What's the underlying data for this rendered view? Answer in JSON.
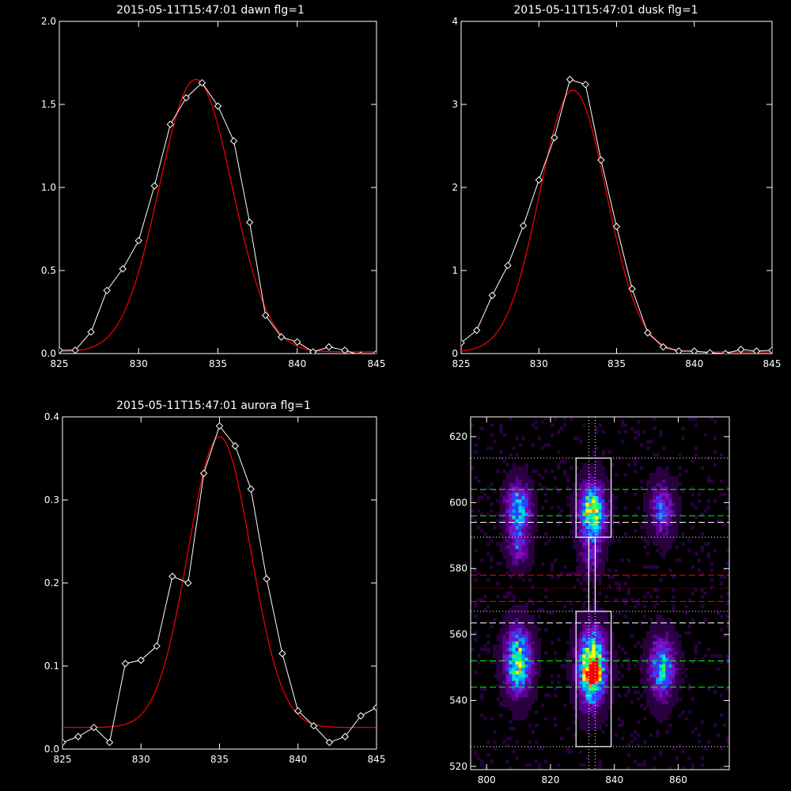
{
  "chart_data": [
    {
      "type": "line",
      "title": "2015-05-11T15:47:01 dawn flg=1",
      "xlim": [
        825,
        845
      ],
      "ylim": [
        0,
        2.0
      ],
      "x_ticks": [
        "825",
        "830",
        "835",
        "840",
        "845"
      ],
      "y_ticks": [
        "0.0",
        "0.5",
        "1.0",
        "1.5",
        "2.0"
      ],
      "series": [
        {
          "role": "observed",
          "color": "#ffffff",
          "marker": "diamond",
          "points": [
            [
              825,
              0.02
            ],
            [
              826,
              0.02
            ],
            [
              827,
              0.13
            ],
            [
              828,
              0.38
            ],
            [
              829,
              0.51
            ],
            [
              830,
              0.68
            ],
            [
              831,
              1.01
            ],
            [
              832,
              1.38
            ],
            [
              833,
              1.54
            ],
            [
              834,
              1.63
            ],
            [
              835,
              1.49
            ],
            [
              836,
              1.28
            ],
            [
              837,
              0.79
            ],
            [
              838,
              0.23
            ],
            [
              839,
              0.1
            ],
            [
              840,
              0.07
            ],
            [
              841,
              0.01
            ],
            [
              842,
              0.04
            ],
            [
              843,
              0.02
            ],
            [
              844,
              -0.01
            ],
            [
              845,
              0.0
            ]
          ]
        },
        {
          "role": "fit",
          "color": "#ff0000",
          "gauss": {
            "amp": 1.64,
            "center": 833.6,
            "sigma": 2.3,
            "offset": 0.01
          }
        }
      ]
    },
    {
      "type": "line",
      "title": "2015-05-11T15:47:01 dusk flg=1",
      "xlim": [
        825,
        845
      ],
      "ylim": [
        0,
        4
      ],
      "x_ticks": [
        "825",
        "830",
        "835",
        "840",
        "845"
      ],
      "y_ticks": [
        "0",
        "1",
        "2",
        "3",
        "4"
      ],
      "series": [
        {
          "role": "observed",
          "color": "#ffffff",
          "marker": "diamond",
          "points": [
            [
              825,
              0.13
            ],
            [
              826,
              0.28
            ],
            [
              827,
              0.7
            ],
            [
              828,
              1.06
            ],
            [
              829,
              1.54
            ],
            [
              830,
              2.09
            ],
            [
              831,
              2.6
            ],
            [
              832,
              3.3
            ],
            [
              833,
              3.24
            ],
            [
              834,
              2.33
            ],
            [
              835,
              1.53
            ],
            [
              836,
              0.78
            ],
            [
              837,
              0.25
            ],
            [
              838,
              0.08
            ],
            [
              839,
              0.03
            ],
            [
              840,
              0.03
            ],
            [
              841,
              0.01
            ],
            [
              842,
              0.0
            ],
            [
              843,
              0.05
            ],
            [
              844,
              0.03
            ],
            [
              845,
              0.04
            ]
          ]
        },
        {
          "role": "fit",
          "color": "#ff0000",
          "gauss": {
            "amp": 3.15,
            "center": 832.2,
            "sigma": 2.15,
            "offset": 0.02
          }
        }
      ]
    },
    {
      "type": "line",
      "title": "2015-05-11T15:47:01 aurora flg=1",
      "xlim": [
        825,
        845
      ],
      "ylim": [
        0,
        0.4
      ],
      "x_ticks": [
        "825",
        "830",
        "835",
        "840",
        "845"
      ],
      "y_ticks": [
        "0.0",
        "0.1",
        "0.2",
        "0.3",
        "0.4"
      ],
      "series": [
        {
          "role": "observed",
          "color": "#ffffff",
          "marker": "diamond",
          "points": [
            [
              825,
              0.008
            ],
            [
              826,
              0.015
            ],
            [
              827,
              0.026
            ],
            [
              828,
              0.008
            ],
            [
              829,
              0.103
            ],
            [
              830,
              0.107
            ],
            [
              831,
              0.124
            ],
            [
              832,
              0.208
            ],
            [
              833,
              0.2
            ],
            [
              834,
              0.332
            ],
            [
              835,
              0.389
            ],
            [
              836,
              0.365
            ],
            [
              837,
              0.313
            ],
            [
              838,
              0.205
            ],
            [
              839,
              0.115
            ],
            [
              840,
              0.046
            ],
            [
              841,
              0.028
            ],
            [
              842,
              0.008
            ],
            [
              843,
              0.015
            ],
            [
              844,
              0.04
            ],
            [
              845,
              0.05
            ]
          ]
        },
        {
          "role": "fit",
          "color": "#ff0000",
          "gauss": {
            "amp": 0.35,
            "center": 835.0,
            "sigma": 2.0,
            "offset": 0.026
          }
        }
      ]
    },
    {
      "type": "heatmap",
      "title": "",
      "xlim": [
        795,
        876
      ],
      "ylim": [
        519,
        626
      ],
      "x_ticks": [
        "800",
        "820",
        "840",
        "860"
      ],
      "y_ticks": [
        "520",
        "540",
        "560",
        "580",
        "600",
        "620"
      ],
      "colormap": [
        "#000000",
        "#2a0040",
        "#5a0090",
        "#7a10c0",
        "#3040ff",
        "#00a0ff",
        "#00e0e0",
        "#40ff40",
        "#ffff00",
        "#ff8000",
        "#ff0000"
      ],
      "blobs": [
        {
          "x": 810,
          "y": 598,
          "sx": 2.6,
          "sy": 5.5,
          "amp": 0.55
        },
        {
          "x": 810,
          "y": 586,
          "sx": 2.4,
          "sy": 4.0,
          "amp": 0.28
        },
        {
          "x": 810,
          "y": 552,
          "sx": 2.8,
          "sy": 7.0,
          "amp": 0.72
        },
        {
          "x": 833,
          "y": 597,
          "sx": 2.8,
          "sy": 6.0,
          "amp": 0.78
        },
        {
          "x": 833,
          "y": 583,
          "sx": 2.2,
          "sy": 4.0,
          "amp": 0.22
        },
        {
          "x": 833,
          "y": 550,
          "sx": 3.0,
          "sy": 7.5,
          "amp": 0.95
        },
        {
          "x": 833,
          "y": 548,
          "sx": 1.3,
          "sy": 2.0,
          "amp": 0.45
        },
        {
          "x": 855,
          "y": 598,
          "sx": 2.6,
          "sy": 5.5,
          "amp": 0.4
        },
        {
          "x": 855,
          "y": 550,
          "sx": 2.8,
          "sy": 6.5,
          "amp": 0.55
        }
      ],
      "vlines": [
        {
          "x": 832,
          "color": "#ffffff",
          "style": "dotted"
        },
        {
          "x": 834,
          "color": "#ffffff",
          "style": "dotted"
        }
      ],
      "hlines": [
        {
          "y": 613.5,
          "color": "#ffffff",
          "style": "dotted"
        },
        {
          "y": 604,
          "color": "#00ff00",
          "style": "dashed"
        },
        {
          "y": 596,
          "color": "#00ff00",
          "style": "dashed"
        },
        {
          "y": 594,
          "color": "#ffffff",
          "style": "dashed"
        },
        {
          "y": 589.5,
          "color": "#ffffff",
          "style": "dotted"
        },
        {
          "y": 578,
          "color": "#ff0000",
          "style": "dashed"
        },
        {
          "y": 574,
          "color": "#ff0000",
          "style": "dotted"
        },
        {
          "y": 570,
          "color": "#ff0000",
          "style": "dashed"
        },
        {
          "y": 567,
          "color": "#ffffff",
          "style": "dotted"
        },
        {
          "y": 563.5,
          "color": "#ffffff",
          "style": "dashed"
        },
        {
          "y": 552,
          "color": "#00ff00",
          "style": "dashed"
        },
        {
          "y": 544,
          "color": "#00ff00",
          "style": "dashed"
        },
        {
          "y": 526,
          "color": "#ffffff",
          "style": "dotted"
        }
      ],
      "boxes": [
        {
          "x0": 828,
          "x1": 839,
          "y0": 589.5,
          "y1": 613.5,
          "color": "#ffffff"
        },
        {
          "x0": 828,
          "x1": 839,
          "y0": 526,
          "y1": 567,
          "color": "#ffffff"
        },
        {
          "x0": 832,
          "x1": 834,
          "y0": 567,
          "y1": 589.5,
          "color": "#ffffff"
        }
      ]
    }
  ]
}
